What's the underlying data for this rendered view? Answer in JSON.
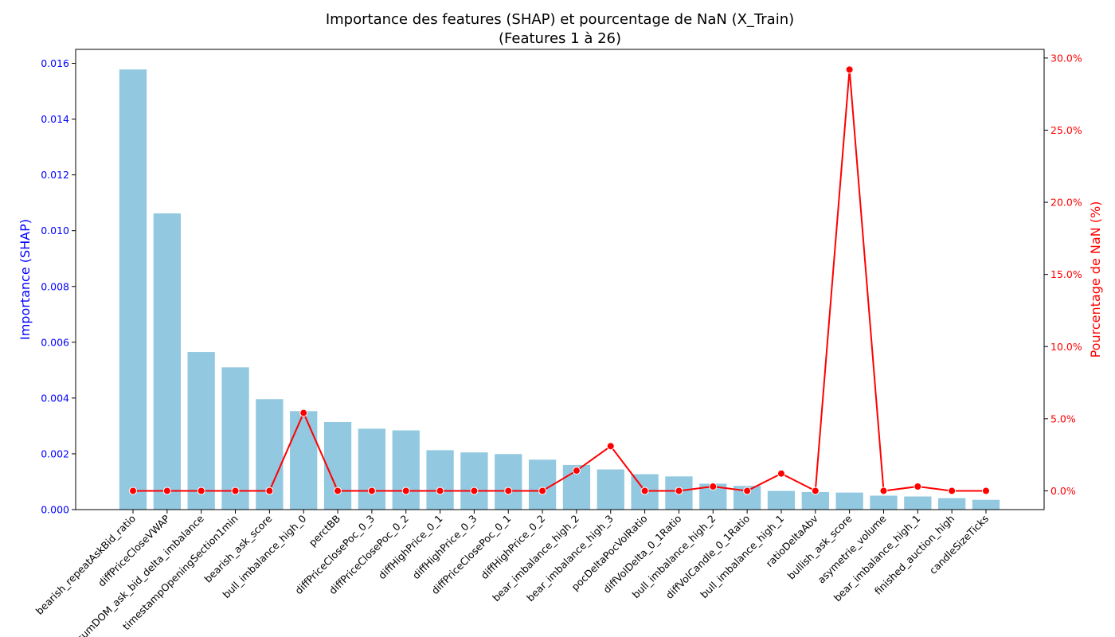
{
  "chart_data": {
    "type": "bar",
    "title": "Importance des features (SHAP) et pourcentage de NaN (X_Train)",
    "subtitle": "(Features 1 à 26)",
    "ylabel": "Importance (SHAP)",
    "y2label": "Pourcentage de NaN (%)",
    "ylim": [
      0,
      0.0165
    ],
    "y_ticks": [
      "0.000",
      "0.002",
      "0.004",
      "0.006",
      "0.008",
      "0.010",
      "0.012",
      "0.014",
      "0.016"
    ],
    "y2lim": [
      -1.3,
      30.6
    ],
    "y2_ticks": [
      "0.0%",
      "5.0%",
      "10.0%",
      "15.0%",
      "20.0%",
      "25.0%",
      "30.0%"
    ],
    "grid": false,
    "colors": {
      "bars": "#92c8e0",
      "line": "#ff0000",
      "left_axis": "#0000ff",
      "right_axis": "#ff0000"
    },
    "categories": [
      "bearish_repeatAskBid_ratio",
      "diffPriceCloseVWAP",
      "cumDOM_ask_bid_delta_imbalance",
      "timestampOpeningSection1min",
      "bearish_ask_score",
      "bull_imbalance_high_0",
      "perctBB",
      "diffPriceClosePoc_0_3",
      "diffPriceClosePoc_0_2",
      "diffHighPrice_0_1",
      "diffHighPrice_0_3",
      "diffPriceClosePoc_0_1",
      "diffHighPrice_0_2",
      "bear_imbalance_high_2",
      "bear_imbalance_high_3",
      "pocDeltaPocVolRatio",
      "diffVolDelta_0_1Ratio",
      "bull_imbalance_high_2",
      "diffVolCandle_0_1Ratio",
      "bull_imbalance_high_1",
      "ratioDeltaAbv",
      "bullish_ask_score",
      "asymetrie_volume",
      "bear_imbalance_high_1",
      "finished_auction_high",
      "candleSizeTicks"
    ],
    "series": [
      {
        "type": "bar",
        "axis": "left",
        "values": [
          0.01578,
          0.01062,
          0.00565,
          0.0051,
          0.00396,
          0.00353,
          0.00314,
          0.0029,
          0.00284,
          0.00213,
          0.00205,
          0.00199,
          0.00179,
          0.0016,
          0.00144,
          0.00127,
          0.00119,
          0.00093,
          0.00085,
          0.00067,
          0.00063,
          0.00061,
          0.0005,
          0.00047,
          0.00041,
          0.00035
        ]
      },
      {
        "type": "line",
        "axis": "right",
        "values": [
          0.0,
          0.0,
          0.0,
          0.0,
          0.0,
          5.4,
          0.0,
          0.0,
          0.0,
          0.0,
          0.0,
          0.0,
          0.0,
          1.4,
          3.1,
          0.0,
          0.0,
          0.3,
          0.0,
          1.2,
          0.0,
          29.2,
          0.0,
          0.3,
          0.0,
          0.0
        ]
      }
    ]
  }
}
